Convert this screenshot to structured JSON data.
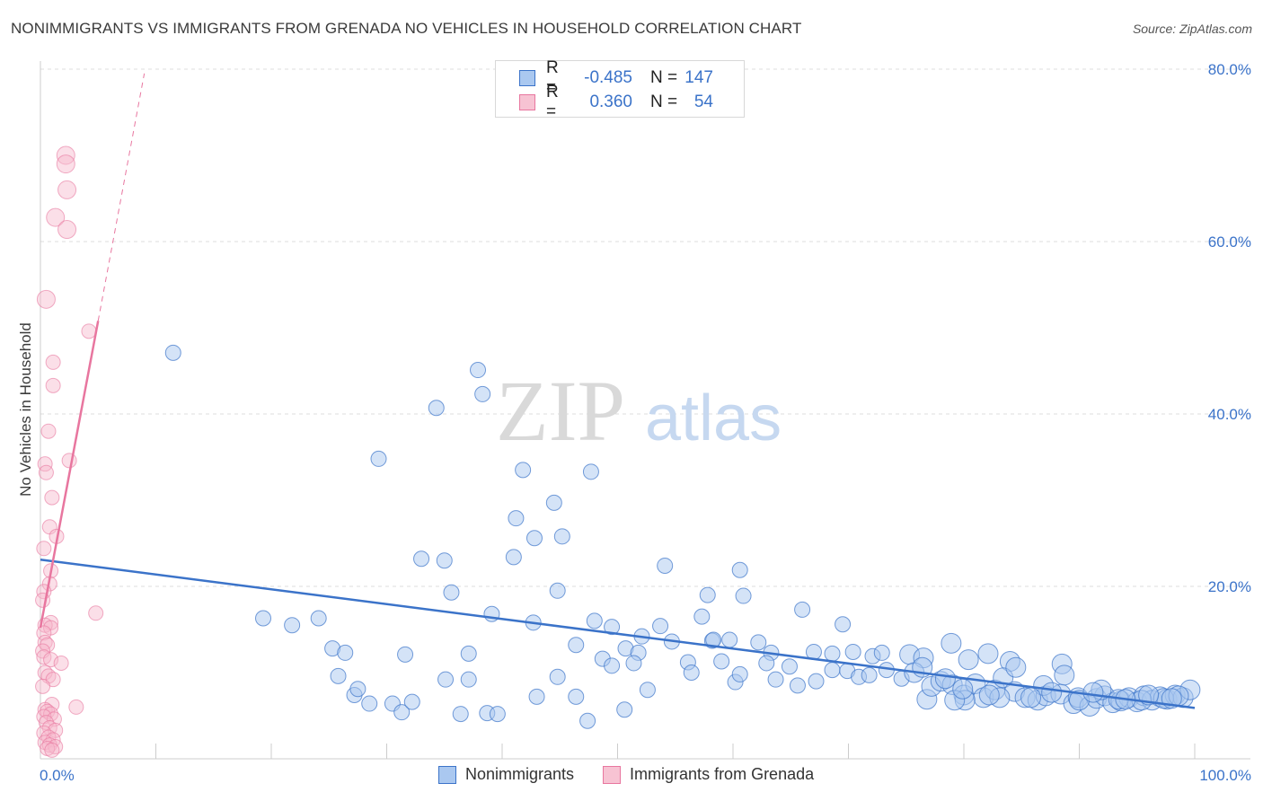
{
  "title": "NONIMMIGRANTS VS IMMIGRANTS FROM GRENADA NO VEHICLES IN HOUSEHOLD CORRELATION CHART",
  "source": "Source: ZipAtlas.com",
  "watermark": {
    "zip": "ZIP",
    "atlas": "atlas"
  },
  "colors": {
    "blue": "#3b73c9",
    "blue_fill": "#aac8f0",
    "pink": "#e8769f",
    "pink_fill": "#f7b8cc",
    "grid": "#dddddd"
  },
  "legend": {
    "rows": [
      {
        "r_label": "R =",
        "r_value": "-0.485",
        "n_label": "N =",
        "n_value": "147"
      },
      {
        "r_label": "R =",
        "r_value": "0.360",
        "n_label": "N =",
        "n_value": "54"
      }
    ]
  },
  "bottom_legend": {
    "series1": "Nonimmigrants",
    "series2": "Immigrants from Grenada"
  },
  "chart_data": {
    "type": "scatter",
    "ylabel": "No Vehicles in Household",
    "xlabel": "",
    "x_tick_labels": [
      "0.0%",
      "100.0%"
    ],
    "y_tick_labels": [
      "20.0%",
      "40.0%",
      "60.0%",
      "80.0%"
    ],
    "xlim": [
      0,
      100
    ],
    "ylim": [
      0,
      82
    ],
    "grid": true,
    "legend_position": "top-center",
    "series": [
      {
        "name": "Nonimmigrants",
        "color": "#3b73c9",
        "trend": {
          "x": [
            0,
            100
          ],
          "y": [
            23.1,
            5.9
          ]
        },
        "points": [
          [
            11.5,
            47.1
          ],
          [
            37.9,
            45.1
          ],
          [
            34.3,
            40.7
          ],
          [
            38.3,
            42.3
          ],
          [
            29.3,
            34.8
          ],
          [
            41.8,
            33.5
          ],
          [
            47.7,
            33.3
          ],
          [
            44.5,
            29.7
          ],
          [
            41.2,
            27.9
          ],
          [
            42.8,
            25.6
          ],
          [
            45.2,
            25.8
          ],
          [
            33.0,
            23.2
          ],
          [
            35.0,
            23.0
          ],
          [
            41.0,
            23.4
          ],
          [
            54.1,
            22.4
          ],
          [
            60.6,
            21.9
          ],
          [
            35.6,
            19.3
          ],
          [
            44.8,
            19.5
          ],
          [
            57.8,
            19.0
          ],
          [
            60.9,
            18.9
          ],
          [
            66.0,
            17.3
          ],
          [
            19.3,
            16.3
          ],
          [
            21.8,
            15.5
          ],
          [
            24.1,
            16.3
          ],
          [
            39.1,
            16.8
          ],
          [
            42.7,
            15.8
          ],
          [
            48.0,
            16.0
          ],
          [
            49.5,
            15.3
          ],
          [
            52.1,
            14.2
          ],
          [
            53.7,
            15.4
          ],
          [
            57.3,
            16.5
          ],
          [
            69.5,
            15.6
          ],
          [
            25.3,
            12.8
          ],
          [
            26.4,
            12.3
          ],
          [
            31.6,
            12.1
          ],
          [
            37.1,
            12.2
          ],
          [
            46.4,
            13.2
          ],
          [
            50.7,
            12.8
          ],
          [
            51.8,
            12.3
          ],
          [
            54.7,
            13.6
          ],
          [
            58.2,
            13.7
          ],
          [
            59.7,
            13.8
          ],
          [
            62.2,
            13.5
          ],
          [
            63.3,
            12.3
          ],
          [
            67.0,
            12.4
          ],
          [
            68.6,
            12.2
          ],
          [
            70.4,
            12.4
          ],
          [
            72.1,
            11.9
          ],
          [
            72.9,
            12.3
          ],
          [
            75.3,
            12.1
          ],
          [
            76.5,
            11.7
          ],
          [
            78.9,
            13.4
          ],
          [
            80.4,
            11.5
          ],
          [
            82.1,
            12.2
          ],
          [
            84.0,
            11.3
          ],
          [
            88.5,
            11.0
          ],
          [
            25.8,
            9.6
          ],
          [
            27.2,
            7.4
          ],
          [
            27.5,
            8.1
          ],
          [
            28.5,
            6.4
          ],
          [
            30.5,
            6.4
          ],
          [
            31.3,
            5.4
          ],
          [
            32.2,
            6.6
          ],
          [
            35.1,
            9.2
          ],
          [
            37.1,
            9.2
          ],
          [
            36.4,
            5.2
          ],
          [
            38.7,
            5.3
          ],
          [
            39.6,
            5.2
          ],
          [
            43.0,
            7.2
          ],
          [
            44.8,
            9.5
          ],
          [
            46.4,
            7.2
          ],
          [
            47.4,
            4.4
          ],
          [
            48.7,
            11.6
          ],
          [
            49.5,
            10.8
          ],
          [
            50.6,
            5.7
          ],
          [
            51.4,
            11.1
          ],
          [
            52.6,
            8.0
          ],
          [
            56.1,
            11.2
          ],
          [
            56.4,
            10.0
          ],
          [
            58.3,
            13.8
          ],
          [
            59.0,
            11.3
          ],
          [
            60.2,
            8.9
          ],
          [
            60.6,
            9.8
          ],
          [
            62.9,
            11.1
          ],
          [
            63.7,
            9.2
          ],
          [
            64.9,
            10.7
          ],
          [
            65.6,
            8.5
          ],
          [
            67.2,
            9.0
          ],
          [
            68.6,
            10.3
          ],
          [
            69.9,
            10.2
          ],
          [
            70.9,
            9.5
          ],
          [
            71.8,
            9.7
          ],
          [
            73.3,
            10.3
          ],
          [
            74.6,
            9.3
          ],
          [
            75.7,
            10.0
          ],
          [
            76.8,
            6.9
          ],
          [
            77.2,
            8.4
          ],
          [
            78.0,
            9.0
          ],
          [
            79.0,
            8.6
          ],
          [
            80.0,
            7.4
          ],
          [
            81.0,
            8.7
          ],
          [
            81.7,
            7.1
          ],
          [
            82.7,
            8.0
          ],
          [
            83.4,
            9.4
          ],
          [
            84.4,
            7.8
          ],
          [
            85.3,
            7.1
          ],
          [
            86.4,
            6.8
          ],
          [
            87.1,
            7.3
          ],
          [
            88.4,
            7.5
          ],
          [
            89.5,
            6.4
          ],
          [
            89.9,
            7.1
          ],
          [
            90.9,
            6.1
          ],
          [
            91.5,
            7.0
          ],
          [
            92.2,
            7.3
          ],
          [
            92.9,
            6.5
          ],
          [
            93.6,
            6.7
          ],
          [
            94.3,
            7.1
          ],
          [
            95.0,
            6.6
          ],
          [
            95.6,
            7.3
          ],
          [
            96.3,
            6.8
          ],
          [
            97.0,
            7.2
          ],
          [
            97.6,
            6.9
          ],
          [
            98.3,
            7.4
          ],
          [
            99.0,
            7.1
          ],
          [
            99.6,
            8.0
          ],
          [
            86.9,
            8.5
          ],
          [
            88.7,
            9.7
          ],
          [
            91.9,
            8.0
          ],
          [
            93.4,
            6.9
          ],
          [
            95.4,
            6.8
          ],
          [
            97.3,
            7.0
          ],
          [
            98.6,
            7.3
          ],
          [
            84.5,
            10.6
          ],
          [
            80.1,
            6.8
          ],
          [
            79.2,
            6.8
          ],
          [
            83.1,
            7.1
          ],
          [
            76.4,
            10.6
          ],
          [
            79.9,
            8.1
          ],
          [
            78.4,
            9.3
          ],
          [
            82.2,
            7.4
          ],
          [
            85.8,
            7.1
          ],
          [
            87.6,
            7.7
          ],
          [
            90.0,
            6.8
          ],
          [
            91.2,
            7.7
          ],
          [
            94.0,
            6.9
          ],
          [
            96.0,
            7.4
          ],
          [
            98.0,
            7.0
          ]
        ]
      },
      {
        "name": "Immigrants from Grenada",
        "color": "#e8769f",
        "trend": {
          "x": [
            0,
            5.0
          ],
          "y": [
            15.2,
            50.8
          ],
          "dashed_to": [
            9.0,
            79.5
          ]
        },
        "points": [
          [
            2.2,
            70.0
          ],
          [
            2.2,
            69.0
          ],
          [
            2.3,
            66.0
          ],
          [
            1.3,
            62.8
          ],
          [
            2.3,
            61.4
          ],
          [
            0.5,
            53.3
          ],
          [
            4.2,
            49.6
          ],
          [
            1.1,
            46.0
          ],
          [
            1.1,
            43.3
          ],
          [
            0.7,
            38.0
          ],
          [
            2.5,
            34.6
          ],
          [
            0.4,
            34.2
          ],
          [
            0.5,
            33.2
          ],
          [
            1.0,
            30.3
          ],
          [
            0.8,
            26.9
          ],
          [
            1.4,
            25.8
          ],
          [
            0.3,
            24.4
          ],
          [
            0.9,
            21.8
          ],
          [
            0.8,
            20.3
          ],
          [
            0.3,
            19.4
          ],
          [
            0.2,
            18.4
          ],
          [
            4.8,
            16.9
          ],
          [
            0.9,
            15.8
          ],
          [
            0.4,
            15.5
          ],
          [
            0.9,
            15.2
          ],
          [
            0.3,
            14.6
          ],
          [
            0.4,
            13.5
          ],
          [
            0.6,
            13.2
          ],
          [
            0.2,
            12.5
          ],
          [
            0.3,
            11.8
          ],
          [
            0.9,
            11.5
          ],
          [
            1.8,
            11.1
          ],
          [
            0.4,
            10.0
          ],
          [
            0.7,
            9.6
          ],
          [
            1.1,
            9.2
          ],
          [
            0.2,
            8.4
          ],
          [
            3.1,
            6.0
          ],
          [
            1.0,
            6.3
          ],
          [
            0.4,
            5.7
          ],
          [
            0.6,
            5.5
          ],
          [
            0.9,
            5.2
          ],
          [
            0.3,
            4.9
          ],
          [
            1.2,
            4.6
          ],
          [
            0.5,
            4.2
          ],
          [
            0.8,
            3.6
          ],
          [
            1.3,
            3.3
          ],
          [
            0.3,
            3.0
          ],
          [
            0.7,
            2.5
          ],
          [
            1.1,
            2.2
          ],
          [
            0.4,
            1.9
          ],
          [
            0.8,
            1.6
          ],
          [
            1.3,
            1.4
          ],
          [
            0.6,
            1.2
          ],
          [
            1.0,
            1.0
          ]
        ]
      }
    ]
  }
}
